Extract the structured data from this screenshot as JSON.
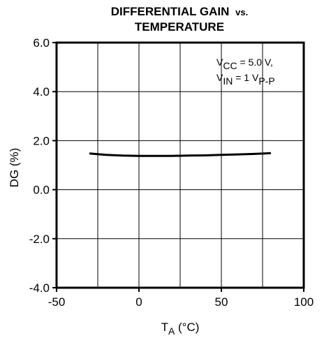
{
  "chart_data": {
    "type": "line",
    "title_line1": "DIFFERENTIAL GAIN",
    "title_vs": "vs.",
    "title_line2": "TEMPERATURE",
    "xlabel_main": "T",
    "xlabel_sub": "A",
    "xlabel_unit": " (°C)",
    "ylabel": "DG (%)",
    "xlim": [
      -50,
      100
    ],
    "ylim": [
      -4.0,
      6.0
    ],
    "xticks": [
      -50,
      0,
      50,
      100
    ],
    "xtick_labels": [
      "-50",
      "0",
      "50",
      "100"
    ],
    "yticks": [
      -4.0,
      -2.0,
      0.0,
      2.0,
      4.0,
      6.0
    ],
    "ytick_labels": [
      "-4.0",
      "-2.0",
      "0.0",
      "2.0",
      "4.0",
      "6.0"
    ],
    "x_grid": [
      -25,
      0,
      25,
      50,
      75
    ],
    "y_grid": [
      -2.0,
      0.0,
      2.0,
      4.0
    ],
    "grid": true,
    "annotation": {
      "line1_main": "V",
      "line1_sub": "CC",
      "line1_rest": " = 5.0 V,",
      "line2_main": "V",
      "line2_sub": "IN",
      "line2_mid": " = 1 V",
      "line2_sub2": "P-P"
    },
    "series": [
      {
        "x": [
          -30,
          -20,
          -10,
          0,
          10,
          20,
          30,
          40,
          50,
          60,
          70,
          80
        ],
        "y": [
          1.48,
          1.42,
          1.39,
          1.38,
          1.38,
          1.38,
          1.39,
          1.4,
          1.42,
          1.44,
          1.46,
          1.49
        ]
      }
    ]
  }
}
